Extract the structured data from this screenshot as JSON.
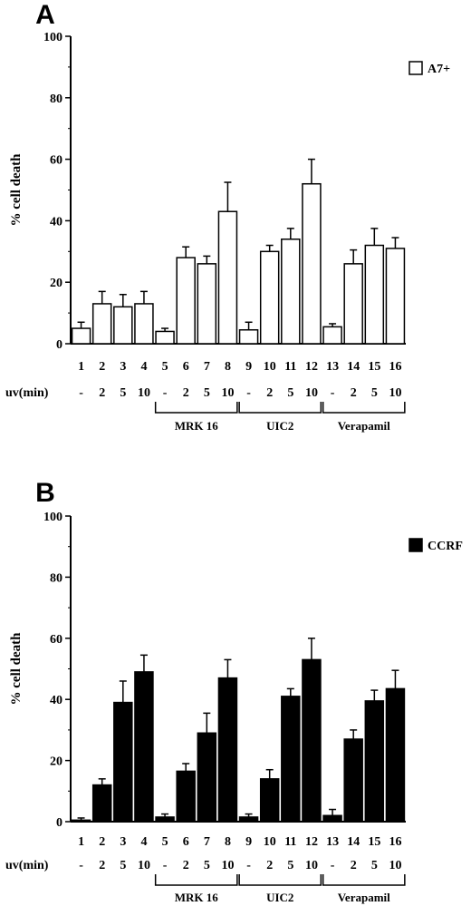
{
  "chart_data": [
    {
      "type": "bar",
      "panel_label": "A",
      "categories": [
        "1",
        "2",
        "3",
        "4",
        "5",
        "6",
        "7",
        "8",
        "9",
        "10",
        "11",
        "12",
        "13",
        "14",
        "15",
        "16"
      ],
      "uv_row_label": "uv(min)",
      "uv_values": [
        "-",
        "2",
        "5",
        "10",
        "-",
        "2",
        "5",
        "10",
        "-",
        "2",
        "5",
        "10",
        "-",
        "2",
        "5",
        "10"
      ],
      "groups": [
        {
          "label": "MRK 16",
          "from": 5,
          "to": 8
        },
        {
          "label": "UIC2",
          "from": 9,
          "to": 12
        },
        {
          "label": "Verapamil",
          "from": 13,
          "to": 16
        }
      ],
      "ylabel": "% cell death",
      "ylim": [
        0,
        100
      ],
      "yticks": [
        0,
        20,
        40,
        60,
        80,
        100
      ],
      "series": [
        {
          "name": "A7+",
          "fill": "#ffffff",
          "values": [
            5,
            13,
            12,
            13,
            4,
            28,
            26,
            43,
            4.5,
            30,
            34,
            52,
            5.5,
            26,
            32,
            31
          ],
          "errors": [
            2,
            4,
            4,
            4,
            1,
            3.5,
            2.5,
            9.5,
            2.5,
            2,
            3.5,
            8,
            1,
            4.5,
            5.5,
            3.5
          ]
        }
      ],
      "legend_position": "top-right"
    },
    {
      "type": "bar",
      "panel_label": "B",
      "categories": [
        "1",
        "2",
        "3",
        "4",
        "5",
        "6",
        "7",
        "8",
        "9",
        "10",
        "11",
        "12",
        "13",
        "14",
        "15",
        "16"
      ],
      "uv_row_label": "uv(min)",
      "uv_values": [
        "-",
        "2",
        "5",
        "10",
        "-",
        "2",
        "5",
        "10",
        "-",
        "2",
        "5",
        "10",
        "-",
        "2",
        "5",
        "10"
      ],
      "groups": [
        {
          "label": "MRK 16",
          "from": 5,
          "to": 8
        },
        {
          "label": "UIC2",
          "from": 9,
          "to": 12
        },
        {
          "label": "Verapamil",
          "from": 13,
          "to": 16
        }
      ],
      "ylabel": "% cell death",
      "ylim": [
        0,
        100
      ],
      "yticks": [
        0,
        20,
        40,
        60,
        80,
        100
      ],
      "series": [
        {
          "name": "CCRF",
          "fill": "#000000",
          "values": [
            0.5,
            12,
            39,
            49,
            1.5,
            16.5,
            29,
            47,
            1.5,
            14,
            41,
            53,
            2,
            27,
            39.5,
            43.5
          ],
          "errors": [
            0.7,
            2,
            7,
            5.5,
            1,
            2.5,
            6.5,
            6,
            1,
            3,
            2.5,
            7,
            2,
            3,
            3.5,
            6
          ]
        }
      ],
      "legend_position": "top-right"
    }
  ]
}
